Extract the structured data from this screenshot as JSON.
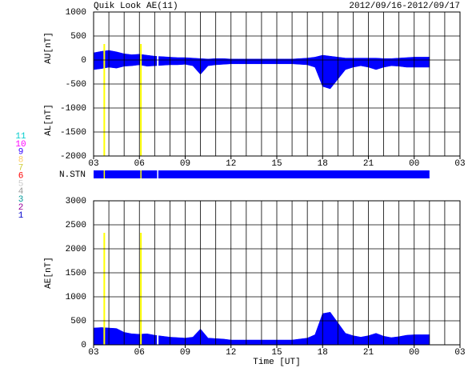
{
  "chart_data": [
    {
      "type": "area",
      "title": "Quik Look AE(11)",
      "subtitle": "2012/09/16-2012/09/17",
      "y_labels": [
        "AU[nT]",
        "AL[nT]"
      ],
      "stn_label": "N.STN",
      "stn_range": [
        3,
        25
      ],
      "stn_color": "#0000ff",
      "x": [
        3,
        3.5,
        4,
        4.5,
        5,
        5.5,
        6,
        6.5,
        7,
        7.5,
        8,
        8.5,
        9,
        9.5,
        10,
        10.5,
        11,
        11.5,
        12,
        12.5,
        13,
        13.5,
        14,
        14.5,
        15,
        15.5,
        16,
        16.5,
        17,
        17.5,
        18,
        18.5,
        19,
        19.5,
        20,
        20.5,
        21,
        21.5,
        22,
        22.5,
        23,
        23.5,
        24,
        24.5,
        25
      ],
      "series": [
        {
          "color": "#0000ff",
          "values": [
            150,
            180,
            200,
            170,
            130,
            110,
            120,
            100,
            80,
            70,
            60,
            50,
            50,
            40,
            30,
            20,
            30,
            30,
            20,
            20,
            20,
            20,
            20,
            20,
            20,
            20,
            20,
            30,
            40,
            60,
            100,
            80,
            60,
            40,
            40,
            40,
            40,
            40,
            30,
            30,
            40,
            50,
            60,
            60,
            60
          ]
        },
        {
          "color": "#0000ff",
          "values": [
            -200,
            -180,
            -150,
            -170,
            -130,
            -120,
            -100,
            -130,
            -120,
            -110,
            -100,
            -100,
            -90,
            -120,
            -300,
            -120,
            -100,
            -90,
            -80,
            -80,
            -80,
            -80,
            -80,
            -80,
            -80,
            -80,
            -80,
            -90,
            -100,
            -150,
            -550,
            -600,
            -400,
            -200,
            -150,
            -120,
            -150,
            -200,
            -150,
            -120,
            -130,
            -150,
            -150,
            -150,
            -150
          ]
        }
      ],
      "xlim": [
        3,
        27
      ],
      "xticks": [
        {
          "value": 3,
          "label": "03"
        },
        {
          "value": 6,
          "label": "06"
        },
        {
          "value": 9,
          "label": "09"
        },
        12,
        15,
        18,
        21,
        {
          "value": 24,
          "label": "00"
        },
        {
          "value": 27,
          "label": "03"
        }
      ],
      "ylim": [
        -2000,
        1000
      ],
      "yticks": [
        -2000,
        -1500,
        -1000,
        -500,
        0,
        500,
        1000
      ]
    },
    {
      "type": "area",
      "y_label": "AE[nT]",
      "x_label": "Time [UT]",
      "x": [
        3,
        3.5,
        4,
        4.5,
        5,
        5.5,
        6,
        6.5,
        7,
        7.5,
        8,
        8.5,
        9,
        9.5,
        10,
        10.5,
        11,
        11.5,
        12,
        12.5,
        13,
        13.5,
        14,
        14.5,
        15,
        15.5,
        16,
        16.5,
        17,
        17.5,
        18,
        18.5,
        19,
        19.5,
        20,
        20.5,
        21,
        21.5,
        22,
        22.5,
        23,
        23.5,
        24,
        24.5,
        25
      ],
      "series": [
        {
          "color": "#0000ff",
          "values": [
            350,
            360,
            350,
            340,
            260,
            230,
            220,
            230,
            200,
            180,
            160,
            150,
            140,
            160,
            330,
            140,
            130,
            120,
            100,
            100,
            100,
            100,
            100,
            100,
            100,
            100,
            100,
            120,
            140,
            210,
            650,
            680,
            460,
            240,
            190,
            160,
            190,
            240,
            180,
            150,
            170,
            200,
            210,
            210,
            210
          ]
        }
      ],
      "xlim": [
        3,
        27
      ],
      "xticks": [
        {
          "value": 3,
          "label": "03"
        },
        {
          "value": 6,
          "label": "06"
        },
        {
          "value": 9,
          "label": "09"
        },
        12,
        15,
        18,
        21,
        {
          "value": 24,
          "label": "00"
        },
        {
          "value": 27,
          "label": "03"
        }
      ],
      "ylim": [
        0,
        3000
      ],
      "yticks": [
        0,
        500,
        1000,
        1500,
        2000,
        2500,
        3000
      ]
    }
  ],
  "x_grid": [
    3,
    4,
    5,
    6,
    7,
    8,
    9,
    10,
    11,
    12,
    13,
    14,
    15,
    16,
    17,
    18,
    19,
    20,
    21,
    22,
    23,
    24,
    25,
    26,
    27
  ],
  "gap_marks": [
    {
      "x": 3.7,
      "color": "#ffff00"
    },
    {
      "x": 6.1,
      "color": "#ffff00"
    },
    {
      "x": 7.2,
      "color": "#ffffff"
    }
  ],
  "station_legend": [
    {
      "label": "11",
      "color": "#00cccc"
    },
    {
      "label": "10",
      "color": "#ff00ff"
    },
    {
      "label": "9",
      "color": "#3300ff"
    },
    {
      "label": "8",
      "color": "#ffcc66"
    },
    {
      "label": "7",
      "color": "#cccc33"
    },
    {
      "label": "6",
      "color": "#ff0000"
    },
    {
      "label": "5",
      "color": "#cccccc"
    },
    {
      "label": "4",
      "color": "#999999"
    },
    {
      "label": "3",
      "color": "#009999"
    },
    {
      "label": "2",
      "color": "#990099"
    },
    {
      "label": "1",
      "color": "#0000cc"
    }
  ]
}
